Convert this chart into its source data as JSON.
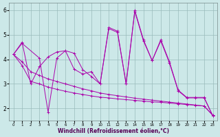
{
  "xlabel": "Windchill (Refroidissement éolien,°C)",
  "bg_color": "#cce8e8",
  "line_color": "#aa00aa",
  "grid_color": "#99bbbb",
  "xlim": [
    -0.5,
    23.5
  ],
  "ylim": [
    1.5,
    6.3
  ],
  "xticks": [
    0,
    1,
    2,
    3,
    4,
    5,
    6,
    7,
    8,
    9,
    10,
    11,
    12,
    13,
    14,
    15,
    16,
    17,
    18,
    19,
    20,
    21,
    22,
    23
  ],
  "yticks": [
    2,
    3,
    4,
    5,
    6
  ],
  "series": [
    {
      "x": [
        0,
        1,
        2,
        3,
        4,
        5,
        6,
        7,
        8,
        9,
        10,
        11,
        12,
        13,
        14,
        15,
        16,
        17,
        18,
        19,
        20,
        21,
        22,
        23
      ],
      "y": [
        4.2,
        4.7,
        3.0,
        3.7,
        4.1,
        4.3,
        4.35,
        3.6,
        3.4,
        3.5,
        3.0,
        5.3,
        5.15,
        3.0,
        6.0,
        4.8,
        3.95,
        4.8,
        3.9,
        2.75,
        2.45,
        2.45,
        2.45,
        1.7
      ]
    },
    {
      "x": [
        0,
        1,
        2,
        3,
        4,
        5,
        6,
        7,
        8,
        9,
        10,
        11,
        12,
        13,
        14,
        15,
        16,
        17,
        18,
        19,
        20,
        21,
        22,
        23
      ],
      "y": [
        4.2,
        3.9,
        3.5,
        3.35,
        3.2,
        3.1,
        3.0,
        2.9,
        2.8,
        2.72,
        2.63,
        2.57,
        2.52,
        2.47,
        2.42,
        2.38,
        2.34,
        2.3,
        2.26,
        2.22,
        2.18,
        2.14,
        2.1,
        1.72
      ]
    },
    {
      "x": [
        0,
        1,
        2,
        3,
        4,
        5,
        6,
        7,
        8,
        9,
        10,
        11,
        12,
        13,
        14,
        15,
        16,
        17,
        18,
        19,
        20,
        21,
        22,
        23
      ],
      "y": [
        4.2,
        3.75,
        3.1,
        3.0,
        2.87,
        2.78,
        2.7,
        2.63,
        2.57,
        2.51,
        2.46,
        2.43,
        2.39,
        2.36,
        2.33,
        2.3,
        2.27,
        2.25,
        2.22,
        2.19,
        2.16,
        2.13,
        2.1,
        1.72
      ]
    },
    {
      "x": [
        0,
        1,
        3,
        4,
        5,
        6,
        7,
        8,
        9,
        10,
        11,
        12,
        13,
        14,
        15,
        16,
        17,
        18,
        19,
        20,
        21,
        22,
        23
      ],
      "y": [
        4.2,
        4.65,
        4.05,
        1.85,
        4.05,
        4.35,
        4.25,
        3.58,
        3.3,
        3.0,
        5.25,
        5.1,
        3.0,
        5.95,
        4.75,
        3.95,
        4.75,
        3.85,
        2.72,
        2.43,
        2.43,
        2.43,
        1.7
      ]
    }
  ]
}
